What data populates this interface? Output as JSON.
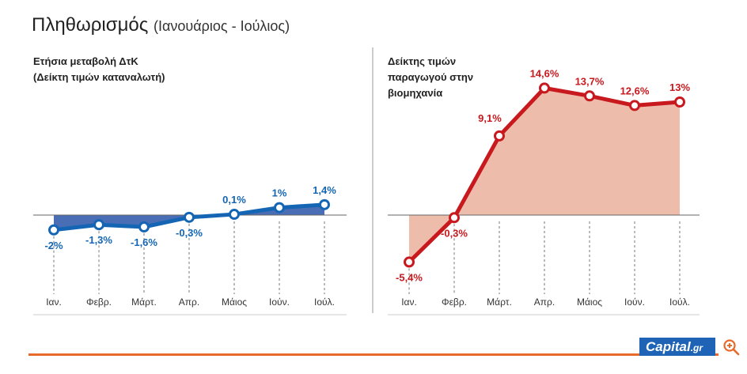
{
  "header": {
    "title": "Πληθωρισμός",
    "subtitle": "(Ιανουάριος - Ιούλιος)"
  },
  "brand": {
    "logo_text": "Capital",
    "logo_suffix": ".gr",
    "accent_color": "#e86a2b",
    "logo_color": "#1e63b5"
  },
  "chart_data": [
    {
      "type": "line",
      "title_line1": "Ετήσια μεταβολή ΔτΚ",
      "title_line2": "(Δείκτη τιμών καταναλωτή)",
      "categories": [
        "Ιαν.",
        "Φεβρ.",
        "Μάρτ.",
        "Απρ.",
        "Μάιος",
        "Ιούν.",
        "Ιούλ."
      ],
      "values": [
        -2,
        -1.3,
        -1.6,
        -0.3,
        0.1,
        1,
        1.4
      ],
      "data_labels": [
        "-2%",
        "-1,3%",
        "-1,6%",
        "-0,3%",
        "0,1%",
        "1%",
        "1,4%"
      ],
      "unit": "%",
      "ylim": [
        -7,
        19
      ],
      "area_fill": true,
      "line_color": "#1466b4",
      "fill_color": "#4a6eb5",
      "label_color": "#1466b4"
    },
    {
      "type": "line",
      "title_line1": "Δείκτης τιμών",
      "title_line2": "παραγωγού στην",
      "title_line3": "βιομηχανία",
      "categories": [
        "Ιαν.",
        "Φεβρ.",
        "Μάρτ.",
        "Απρ.",
        "Μάιος",
        "Ιούν.",
        "Ιούλ."
      ],
      "values": [
        -5.4,
        -0.3,
        9.1,
        14.6,
        13.7,
        12.6,
        13
      ],
      "data_labels": [
        "-5,4%",
        "-0,3%",
        "9,1%",
        "14,6%",
        "13,7%",
        "12,6%",
        "13%"
      ],
      "unit": "%",
      "ylim": [
        -7,
        19
      ],
      "area_fill": true,
      "line_color": "#c8191e",
      "fill_color": "#eebcaa",
      "label_color": "#c8191e"
    }
  ]
}
